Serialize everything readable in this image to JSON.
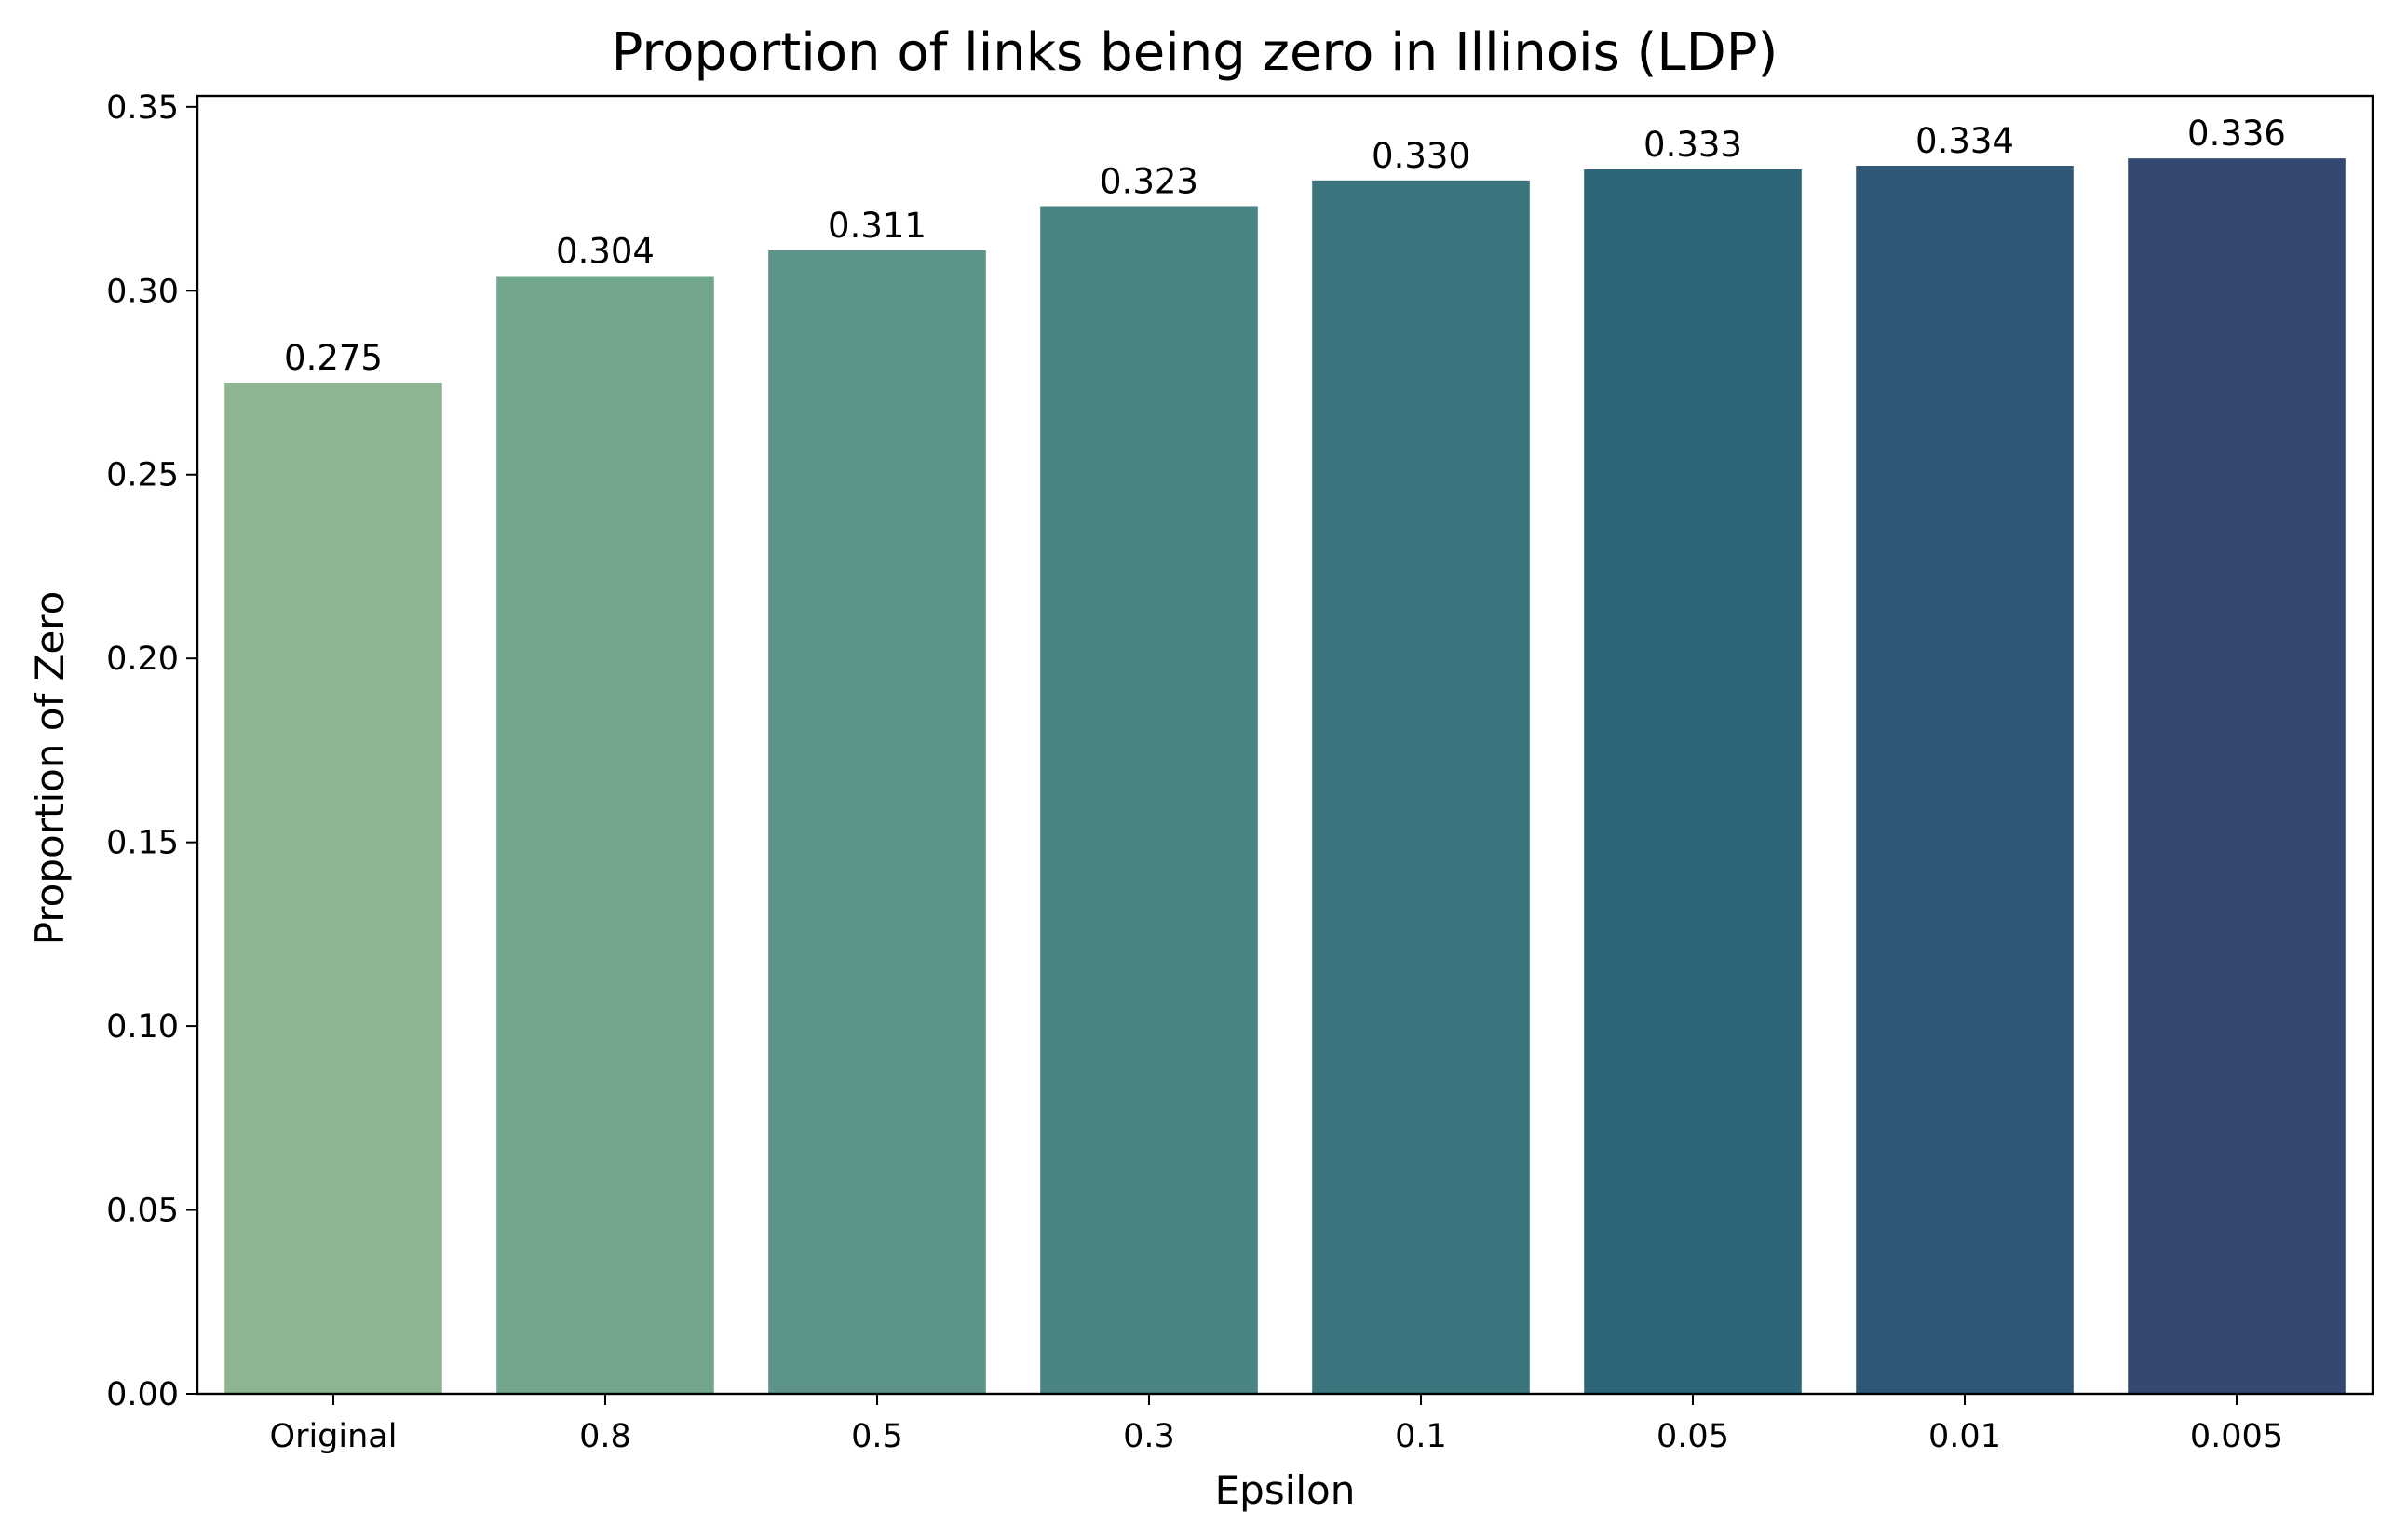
{
  "chart_data": {
    "type": "bar",
    "title": "Proportion of links being zero in Illinois (LDP)",
    "xlabel": "Epsilon",
    "ylabel": "Proportion of Zero",
    "categories": [
      "Original",
      "0.8",
      "0.5",
      "0.3",
      "0.1",
      "0.05",
      "0.01",
      "0.005"
    ],
    "values": [
      0.275,
      0.304,
      0.311,
      0.323,
      0.33,
      0.333,
      0.334,
      0.336
    ],
    "data_labels": [
      "0.275",
      "0.304",
      "0.311",
      "0.323",
      "0.330",
      "0.333",
      "0.334",
      "0.336"
    ],
    "colors": [
      "#8db592",
      "#72a78e",
      "#5c948a",
      "#4a8483",
      "#3a757e",
      "#2e6679",
      "#2f5878",
      "#344871"
    ],
    "yticks": [
      0.0,
      0.05,
      0.1,
      0.15,
      0.2,
      0.25,
      0.3,
      0.35
    ],
    "ytick_labels": [
      "0.00",
      "0.05",
      "0.10",
      "0.15",
      "0.20",
      "0.25",
      "0.30",
      "0.35"
    ],
    "ylim": [
      0,
      0.353
    ],
    "grid": false,
    "legend": "none"
  }
}
